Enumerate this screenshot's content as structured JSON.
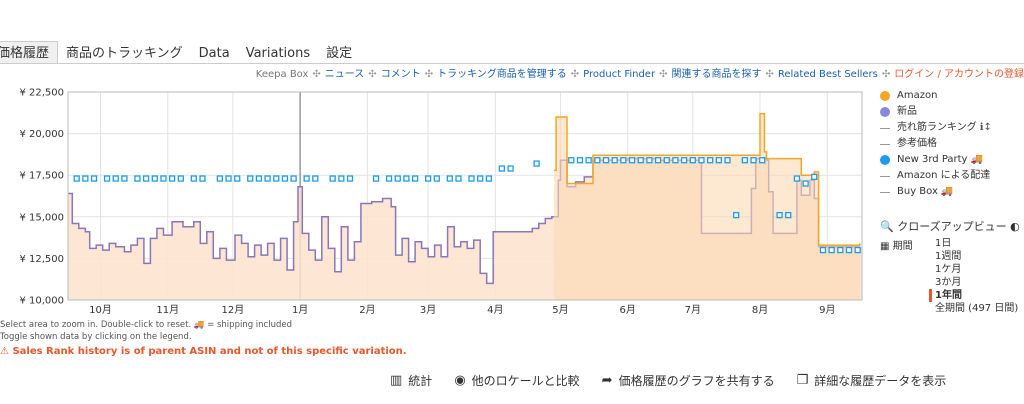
{
  "tabs": [
    "価格履歴",
    "商品のトラッキング",
    "Data",
    "Variations",
    "設定"
  ],
  "toplinks": [
    {
      "text": "Keepa Box",
      "style": "plain"
    },
    {
      "text": "ニュース",
      "style": "lnk"
    },
    {
      "text": "コメント",
      "style": "lnk"
    },
    {
      "text": "トラッキング商品を管理する",
      "style": "lnk"
    },
    {
      "text": "Product Finder",
      "style": "lnk"
    },
    {
      "text": "関連する商品を探す",
      "style": "lnk"
    },
    {
      "text": "Related Best Sellers",
      "style": "lnk"
    },
    {
      "text": "ログイン / アカウントの登録",
      "style": "red"
    }
  ],
  "legend": [
    {
      "label": "Amazon",
      "kind": "dot",
      "color": "#f5a623"
    },
    {
      "label": "新品",
      "kind": "dot",
      "color": "#8888dd"
    },
    {
      "label": "売れ筋ランキング",
      "kind": "dash",
      "suffix": "ℹ↕"
    },
    {
      "label": "参考価格",
      "kind": "dash"
    },
    {
      "label": "New 3rd Party",
      "kind": "dot",
      "color": "#1e9be8",
      "truck": true
    },
    {
      "label": "Amazon による配達",
      "kind": "dash"
    },
    {
      "label": "Buy Box",
      "kind": "dash",
      "truck": true
    }
  ],
  "closeup_label": "クローズアップビュー",
  "period": {
    "label": "期間",
    "options": [
      "1日",
      "1週間",
      "1ケ月",
      "3か月",
      "1年間",
      "全期間 (497 日間)"
    ],
    "selected": "1年間"
  },
  "notes": {
    "line1": "Select area to zoom in. Double-click to reset.",
    "line1b": "= shipping included",
    "line2": "Toggle shown data by clicking on the legend."
  },
  "warning": "Sales Rank history is of parent ASIN and not of this specific variation.",
  "actions": [
    {
      "icon": "stats-icon",
      "label": "統計"
    },
    {
      "icon": "globe-icon",
      "label": "他のロケールと比較"
    },
    {
      "icon": "share-icon",
      "label": "価格履歴のグラフを共有する"
    },
    {
      "icon": "copy-icon",
      "label": "詳細な履歴データを表示"
    }
  ],
  "chart_data": {
    "type": "line",
    "ylim": [
      10000,
      22500
    ],
    "y_ticks": [
      10000,
      12500,
      15000,
      17500,
      20000,
      22500
    ],
    "y_tick_labels": [
      "¥ 10,000",
      "¥ 12,500",
      "¥ 15,000",
      "¥ 17,500",
      "¥ 20,000",
      "¥ 22,500"
    ],
    "x_range": [
      "2022-09-16",
      "2023-09-17"
    ],
    "x_ticks": [
      {
        "date": "2022-10-01",
        "label": "10月"
      },
      {
        "date": "2022-11-01",
        "label": "11月"
      },
      {
        "date": "2022-12-01",
        "label": "12月"
      },
      {
        "date": "2023-01-01",
        "label": "1月"
      },
      {
        "date": "2023-02-01",
        "label": "2月"
      },
      {
        "date": "2023-03-01",
        "label": "3月"
      },
      {
        "date": "2023-04-01",
        "label": "4月"
      },
      {
        "date": "2023-05-01",
        "label": "5月"
      },
      {
        "date": "2023-06-01",
        "label": "6月"
      },
      {
        "date": "2023-07-01",
        "label": "7月"
      },
      {
        "date": "2023-08-01",
        "label": "8月"
      },
      {
        "date": "2023-09-01",
        "label": "9月"
      }
    ],
    "grid": true,
    "series": [
      {
        "name": "新品",
        "color": "#8877bb",
        "points": [
          [
            "2022-09-16",
            16400
          ],
          [
            "2022-09-18",
            14600
          ],
          [
            "2022-09-21",
            14300
          ],
          [
            "2022-09-24",
            14100
          ],
          [
            "2022-09-26",
            13100
          ],
          [
            "2022-09-29",
            13300
          ],
          [
            "2022-10-02",
            13000
          ],
          [
            "2022-10-05",
            13400
          ],
          [
            "2022-10-08",
            13200
          ],
          [
            "2022-10-12",
            12900
          ],
          [
            "2022-10-15",
            13300
          ],
          [
            "2022-10-18",
            13700
          ],
          [
            "2022-10-21",
            12200
          ],
          [
            "2022-10-24",
            13700
          ],
          [
            "2022-10-27",
            14300
          ],
          [
            "2022-10-30",
            13900
          ],
          [
            "2022-11-03",
            14700
          ],
          [
            "2022-11-08",
            14400
          ],
          [
            "2022-11-13",
            14700
          ],
          [
            "2022-11-16",
            13400
          ],
          [
            "2022-11-19",
            14100
          ],
          [
            "2022-11-22",
            12500
          ],
          [
            "2022-11-25",
            13100
          ],
          [
            "2022-11-28",
            12400
          ],
          [
            "2022-12-02",
            13900
          ],
          [
            "2022-12-05",
            13400
          ],
          [
            "2022-12-08",
            12600
          ],
          [
            "2022-12-11",
            13300
          ],
          [
            "2022-12-14",
            12700
          ],
          [
            "2022-12-17",
            13400
          ],
          [
            "2022-12-20",
            12400
          ],
          [
            "2022-12-23",
            13700
          ],
          [
            "2022-12-26",
            11800
          ],
          [
            "2022-12-29",
            14700
          ],
          [
            "2022-12-31",
            16800
          ],
          [
            "2023-01-02",
            14000
          ],
          [
            "2023-01-05",
            13000
          ],
          [
            "2023-01-08",
            12400
          ],
          [
            "2023-01-11",
            15000
          ],
          [
            "2023-01-14",
            13100
          ],
          [
            "2023-01-17",
            11700
          ],
          [
            "2023-01-20",
            14400
          ],
          [
            "2023-01-23",
            12400
          ],
          [
            "2023-01-26",
            13500
          ],
          [
            "2023-01-29",
            15800
          ],
          [
            "2023-02-03",
            15900
          ],
          [
            "2023-02-08",
            16100
          ],
          [
            "2023-02-12",
            15600
          ],
          [
            "2023-02-14",
            12700
          ],
          [
            "2023-02-17",
            13700
          ],
          [
            "2023-02-20",
            12300
          ],
          [
            "2023-02-23",
            13500
          ],
          [
            "2023-02-26",
            13100
          ],
          [
            "2023-03-01",
            12600
          ],
          [
            "2023-03-04",
            13300
          ],
          [
            "2023-03-07",
            12600
          ],
          [
            "2023-03-10",
            14400
          ],
          [
            "2023-03-13",
            13200
          ],
          [
            "2023-03-16",
            13500
          ],
          [
            "2023-03-19",
            13100
          ],
          [
            "2023-03-22",
            13600
          ],
          [
            "2023-03-25",
            11600
          ],
          [
            "2023-03-28",
            11000
          ],
          [
            "2023-03-31",
            14100
          ],
          [
            "2023-04-05",
            14100
          ],
          [
            "2023-04-10",
            14100
          ],
          [
            "2023-04-15",
            14100
          ],
          [
            "2023-04-18",
            14300
          ],
          [
            "2023-04-21",
            14600
          ],
          [
            "2023-04-24",
            14900
          ],
          [
            "2023-04-27",
            15000
          ],
          [
            "2023-04-30",
            17200
          ],
          [
            "2023-05-01",
            18400
          ],
          [
            "2023-05-04",
            16800
          ],
          [
            "2023-05-08",
            17100
          ],
          [
            "2023-05-12",
            17400
          ],
          [
            "2023-05-16",
            18400
          ],
          [
            "2023-06-01",
            18500
          ],
          [
            "2023-06-15",
            18400
          ],
          [
            "2023-07-04",
            18400
          ],
          [
            "2023-07-05",
            14000
          ],
          [
            "2023-07-20",
            14000
          ],
          [
            "2023-07-27",
            14000
          ],
          [
            "2023-07-28",
            16700
          ],
          [
            "2023-07-30",
            18500
          ],
          [
            "2023-08-04",
            18400
          ],
          [
            "2023-08-05",
            16500
          ],
          [
            "2023-08-07",
            14000
          ],
          [
            "2023-08-14",
            14000
          ],
          [
            "2023-08-18",
            17200
          ],
          [
            "2023-08-20",
            16300
          ],
          [
            "2023-08-24",
            17200
          ],
          [
            "2023-08-26",
            16100
          ],
          [
            "2023-08-28",
            13200
          ],
          [
            "2023-09-16",
            13200
          ]
        ]
      },
      {
        "name": "Amazon",
        "color": "#f5a623",
        "points": [
          [
            "2023-04-28",
            17800
          ],
          [
            "2023-04-29",
            21000
          ],
          [
            "2023-05-03",
            21000
          ],
          [
            "2023-05-04",
            17000
          ],
          [
            "2023-05-16",
            18700
          ],
          [
            "2023-07-04",
            18700
          ],
          [
            "2023-07-29",
            18700
          ],
          [
            "2023-08-01",
            21200
          ],
          [
            "2023-08-03",
            18900
          ],
          [
            "2023-08-04",
            18500
          ],
          [
            "2023-08-20",
            17500
          ],
          [
            "2023-08-26",
            17700
          ],
          [
            "2023-08-28",
            13300
          ],
          [
            "2023-09-16",
            13400
          ]
        ]
      },
      {
        "name": "New 3rd Party",
        "color": "#1e9be8",
        "marker": "square",
        "x": [
          "2022-09-20",
          "2022-09-24",
          "2022-09-28",
          "2022-10-04",
          "2022-10-08",
          "2022-10-12",
          "2022-10-18",
          "2022-10-22",
          "2022-10-26",
          "2022-10-30",
          "2022-11-03",
          "2022-11-07",
          "2022-11-13",
          "2022-11-17",
          "2022-11-25",
          "2022-11-29",
          "2022-12-03",
          "2022-12-09",
          "2022-12-13",
          "2022-12-17",
          "2022-12-21",
          "2022-12-25",
          "2022-12-29",
          "2023-01-04",
          "2023-01-08",
          "2023-01-16",
          "2023-01-20",
          "2023-01-24",
          "2023-02-05",
          "2023-02-11",
          "2023-02-15",
          "2023-02-19",
          "2023-02-23",
          "2023-03-01",
          "2023-03-05",
          "2023-03-11",
          "2023-03-15",
          "2023-03-21",
          "2023-03-25",
          "2023-03-29",
          "2023-04-04",
          "2023-04-08",
          "2023-04-20",
          "2023-05-06",
          "2023-05-10",
          "2023-05-14",
          "2023-05-18",
          "2023-05-22",
          "2023-05-26",
          "2023-05-30",
          "2023-06-03",
          "2023-06-07",
          "2023-06-11",
          "2023-06-15",
          "2023-06-19",
          "2023-06-23",
          "2023-06-27",
          "2023-07-01",
          "2023-07-05",
          "2023-07-09",
          "2023-07-13",
          "2023-07-17",
          "2023-07-21",
          "2023-07-25",
          "2023-07-29",
          "2023-08-02",
          "2023-08-10",
          "2023-08-14",
          "2023-08-18",
          "2023-08-22",
          "2023-08-26",
          "2023-08-30",
          "2023-09-03",
          "2023-09-07",
          "2023-09-11",
          "2023-09-15"
        ],
        "y": [
          17300,
          17300,
          17300,
          17300,
          17300,
          17300,
          17300,
          17300,
          17300,
          17300,
          17300,
          17300,
          17300,
          17300,
          17300,
          17300,
          17300,
          17300,
          17300,
          17300,
          17300,
          17300,
          17300,
          17300,
          17300,
          17300,
          17300,
          17300,
          17300,
          17300,
          17300,
          17300,
          17300,
          17300,
          17300,
          17300,
          17300,
          17300,
          17300,
          17300,
          17900,
          17900,
          18200,
          18400,
          18400,
          18400,
          18400,
          18400,
          18400,
          18400,
          18400,
          18400,
          18400,
          18400,
          18400,
          18400,
          18400,
          18400,
          18400,
          18400,
          18400,
          18400,
          15100,
          18400,
          18400,
          18400,
          15100,
          15100,
          17300,
          17000,
          17400,
          13000,
          13000,
          13000,
          13000,
          13000
        ]
      }
    ]
  }
}
